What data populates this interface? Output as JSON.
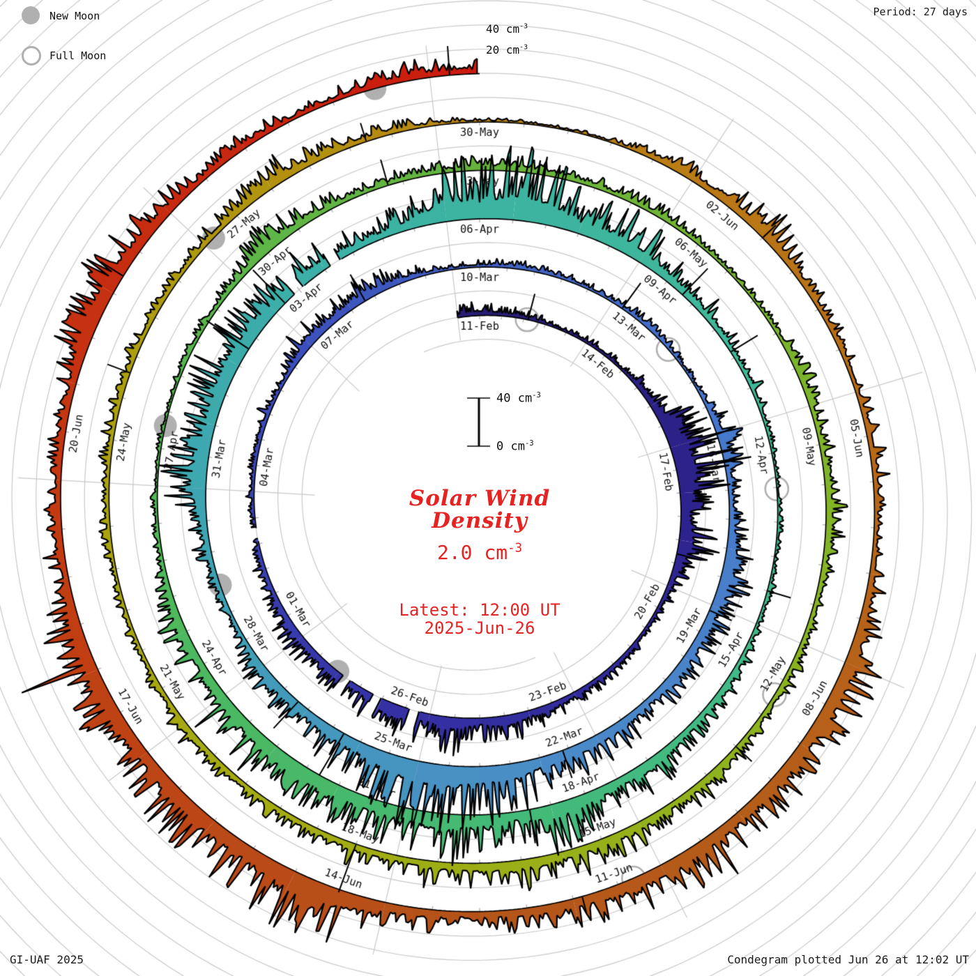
{
  "legend": {
    "new_moon": "New Moon",
    "full_moon": "Full Moon"
  },
  "header": {
    "period_label": "Period: 27 days"
  },
  "footer": {
    "credit": "GI-UAF 2025",
    "plotted": "Condegram plotted Jun 26 at 12:02 UT"
  },
  "outer_scale": {
    "top": "40 cm",
    "bottom": "20 cm",
    "exp": "-3"
  },
  "center_scale": {
    "top": "40 cm",
    "bottom": "0 cm",
    "exp": "-3"
  },
  "center_text": {
    "title_line1": "Solar Wind",
    "title_line2": "Density",
    "value": "2.0 cm",
    "value_exp": "-3",
    "latest_line1": "Latest: 12:00 UT",
    "latest_line2": "2025-Jun-26"
  },
  "colors": {
    "accent_red": "#e62323",
    "moon_gray": "#b0b0b0",
    "grid_gray": "#c9c9c9",
    "tick_gray": "#b4b4b4",
    "label_dark": "#111111"
  },
  "chart_data": {
    "type": "area",
    "layout": "polar_spiral_condegram",
    "title": "Solar Wind Density",
    "units": "cm-3",
    "period_days": 27,
    "start_date": "2025-Feb-11",
    "end_date": "2025-Jun-26 12:00 UT",
    "latest_density": 2.0,
    "radial_scale": {
      "min": 0,
      "ref_max": 40,
      "gridline_step": 20
    },
    "date_labels": [
      {
        "d": 0,
        "label": "11-Feb"
      },
      {
        "d": 3,
        "label": "14-Feb"
      },
      {
        "d": 6,
        "label": "17-Feb"
      },
      {
        "d": 9,
        "label": "20-Feb"
      },
      {
        "d": 12,
        "label": "23-Feb"
      },
      {
        "d": 15,
        "label": "26-Feb"
      },
      {
        "d": 18,
        "label": "01-Mar"
      },
      {
        "d": 21,
        "label": "04-Mar"
      },
      {
        "d": 24,
        "label": "07-Mar"
      },
      {
        "d": 27,
        "label": "10-Mar"
      },
      {
        "d": 30,
        "label": "13-Mar"
      },
      {
        "d": 33,
        "label": "16-Mar"
      },
      {
        "d": 36,
        "label": "19-Mar"
      },
      {
        "d": 39,
        "label": "22-Mar"
      },
      {
        "d": 42,
        "label": "25-Mar"
      },
      {
        "d": 45,
        "label": "28-Mar"
      },
      {
        "d": 48,
        "label": "31-Mar"
      },
      {
        "d": 51,
        "label": "03-Apr"
      },
      {
        "d": 54,
        "label": "06-Apr"
      },
      {
        "d": 57,
        "label": "09-Apr"
      },
      {
        "d": 60,
        "label": "12-Apr"
      },
      {
        "d": 63,
        "label": "15-Apr"
      },
      {
        "d": 66,
        "label": "18-Apr"
      },
      {
        "d": 69,
        "label": "21-Apr"
      },
      {
        "d": 72,
        "label": "24-Apr"
      },
      {
        "d": 75,
        "label": "27-Apr"
      },
      {
        "d": 78,
        "label": "30-Apr"
      },
      {
        "d": 81,
        "label": "03-May"
      },
      {
        "d": 84,
        "label": "06-May"
      },
      {
        "d": 87,
        "label": "09-May"
      },
      {
        "d": 90,
        "label": "12-May"
      },
      {
        "d": 93,
        "label": "15-May"
      },
      {
        "d": 96,
        "label": "18-May"
      },
      {
        "d": 99,
        "label": "21-May"
      },
      {
        "d": 102,
        "label": "24-May"
      },
      {
        "d": 105,
        "label": "27-May"
      },
      {
        "d": 108,
        "label": "30-May"
      },
      {
        "d": 111,
        "label": "02-Jun"
      },
      {
        "d": 114,
        "label": "05-Jun"
      },
      {
        "d": 117,
        "label": "08-Jun"
      },
      {
        "d": 120,
        "label": "11-Jun"
      },
      {
        "d": 123,
        "label": "14-Jun"
      },
      {
        "d": 126,
        "label": "17-Jun"
      },
      {
        "d": 129,
        "label": "20-Jun"
      }
    ],
    "moon_events": [
      {
        "d": 1.58,
        "phase": "full",
        "date": "Feb 12"
      },
      {
        "d": 17.03,
        "phase": "new",
        "date": "Feb 28"
      },
      {
        "d": 31.29,
        "phase": "full",
        "date": "Mar 14"
      },
      {
        "d": 46.46,
        "phase": "new",
        "date": "Mar 29"
      },
      {
        "d": 61.02,
        "phase": "full",
        "date": "Apr 13"
      },
      {
        "d": 75.81,
        "phase": "new",
        "date": "Apr 27"
      },
      {
        "d": 90.71,
        "phase": "full",
        "date": "May 12"
      },
      {
        "d": 105.13,
        "phase": "new",
        "date": "May 27"
      },
      {
        "d": 120.32,
        "phase": "full",
        "date": "Jun 11"
      },
      {
        "d": 134.44,
        "phase": "new",
        "date": "Jun 25"
      }
    ],
    "daily_mean_density": [
      6,
      5,
      4,
      3,
      3,
      8,
      25,
      28,
      20,
      8,
      4,
      5,
      10,
      14,
      12,
      16,
      14,
      10,
      8,
      6,
      5,
      4,
      4,
      6,
      14,
      12,
      7,
      5,
      4,
      4,
      6,
      4,
      3,
      10,
      9,
      12,
      18,
      15,
      8,
      14,
      22,
      28,
      30,
      28,
      20,
      12,
      8,
      10,
      20,
      24,
      18,
      22,
      18,
      10,
      26,
      30,
      28,
      14,
      8,
      6,
      4,
      3,
      3,
      5,
      9,
      12,
      14,
      20,
      24,
      26,
      18,
      16,
      18,
      12,
      6,
      4,
      4,
      6,
      10,
      12,
      10,
      8,
      6,
      5,
      6,
      4,
      4,
      8,
      10,
      8,
      6,
      8,
      10,
      12,
      10,
      12,
      14,
      10,
      8,
      7,
      6,
      6,
      5,
      8,
      6,
      6,
      12,
      8,
      4,
      3,
      4,
      10,
      12,
      8,
      6,
      6,
      8,
      18,
      24,
      20,
      16,
      14,
      12,
      22,
      28,
      30,
      24,
      16,
      12,
      10,
      12,
      20,
      16,
      8,
      6,
      8
    ],
    "spikes": [
      [
        1.6,
        22
      ],
      [
        8.3,
        18
      ],
      [
        25.3,
        25
      ],
      [
        30.2,
        26
      ],
      [
        36.1,
        20
      ],
      [
        39.6,
        24
      ],
      [
        43.3,
        40
      ],
      [
        44.2,
        30
      ],
      [
        50.3,
        42
      ],
      [
        51.2,
        38
      ],
      [
        57.8,
        30
      ],
      [
        58.9,
        26
      ],
      [
        62.5,
        20
      ],
      [
        67.3,
        28
      ],
      [
        80.3,
        22
      ],
      [
        91.5,
        18
      ],
      [
        96.5,
        42
      ],
      [
        103.3,
        20
      ],
      [
        107.2,
        16
      ],
      [
        112.0,
        15
      ],
      [
        120.9,
        14
      ],
      [
        131.2,
        22
      ],
      [
        135.2,
        24
      ]
    ],
    "dropouts": [
      [
        15.25,
        15.42
      ],
      [
        16.05,
        16.2
      ],
      [
        16.75,
        16.9
      ],
      [
        20.1,
        20.3
      ],
      [
        51.4,
        51.55
      ],
      [
        52.1,
        52.25
      ]
    ],
    "color_stops": [
      [
        0,
        "#251b70"
      ],
      [
        8,
        "#2e2490"
      ],
      [
        16,
        "#3532a6"
      ],
      [
        24,
        "#3c50bc"
      ],
      [
        32,
        "#4573cc"
      ],
      [
        40,
        "#4b8cc8"
      ],
      [
        47,
        "#3da4b2"
      ],
      [
        53,
        "#3cb2a4"
      ],
      [
        60,
        "#40b896"
      ],
      [
        67,
        "#43ba7a"
      ],
      [
        74,
        "#4fb858"
      ],
      [
        82,
        "#68b43a"
      ],
      [
        90,
        "#89b322"
      ],
      [
        97,
        "#a3ad12"
      ],
      [
        104,
        "#ad9d0e"
      ],
      [
        109,
        "#bb8314"
      ],
      [
        114,
        "#b76a18"
      ],
      [
        122,
        "#b4541a"
      ],
      [
        128,
        "#c23c12"
      ],
      [
        135.5,
        "#cb1b0e"
      ]
    ]
  }
}
